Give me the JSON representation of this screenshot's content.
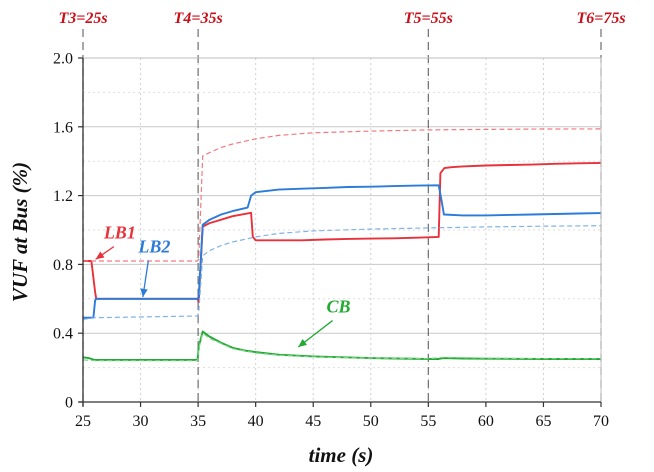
{
  "chart_data": {
    "type": "line",
    "xlabel": "time (s)",
    "ylabel": "VUF at Bus (%)",
    "xlim": [
      25,
      70
    ],
    "ylim": [
      0,
      2.0
    ],
    "x_ticks": [
      25,
      30,
      35,
      40,
      45,
      50,
      55,
      60,
      65,
      70
    ],
    "x_tick_labels": [
      "25",
      "30",
      "35",
      "40",
      "45",
      "50",
      "55",
      "60",
      "65",
      "70"
    ],
    "y_ticks": [
      0,
      0.4,
      0.8,
      1.2,
      1.6,
      2.0
    ],
    "y_tick_labels": [
      "0",
      "0.4",
      "0.8",
      "1.2",
      "1.6",
      "2.0"
    ],
    "grid": true,
    "event_markers": [
      {
        "label": "T3=25s",
        "x": 25
      },
      {
        "label": "T4=35s",
        "x": 35
      },
      {
        "label": "T5=55s",
        "x": 55
      },
      {
        "label": "T6=75s",
        "x": 70
      }
    ],
    "annotations": [
      {
        "label": "LB1",
        "color": "#e8313a",
        "text_at": [
          28.2,
          0.95
        ],
        "arrow_to": [
          26.1,
          0.83
        ]
      },
      {
        "label": "LB2",
        "color": "#2b7bd8",
        "text_at": [
          31.2,
          0.87
        ],
        "arrow_to": [
          30.2,
          0.61
        ]
      },
      {
        "label": "CB",
        "color": "#22aa33",
        "text_at": [
          47.2,
          0.52
        ],
        "arrow_to": [
          43.7,
          0.32
        ]
      }
    ],
    "series": [
      {
        "color": "#e8313a",
        "style": "solid",
        "x": [
          25,
          25.7,
          25.75,
          26.05,
          26.15,
          34.95,
          35.05,
          35.4,
          36,
          37,
          38,
          39.6,
          39.75,
          40,
          42,
          44,
          46,
          48,
          50,
          52,
          54,
          55.9,
          56.05,
          56.4,
          57,
          58,
          60,
          62,
          64,
          66,
          68,
          70
        ],
        "y": [
          0.82,
          0.82,
          0.81,
          0.64,
          0.6,
          0.6,
          0.58,
          1.02,
          1.04,
          1.06,
          1.08,
          1.1,
          0.96,
          0.94,
          0.94,
          0.94,
          0.945,
          0.948,
          0.95,
          0.952,
          0.955,
          0.96,
          1.33,
          1.36,
          1.365,
          1.37,
          1.375,
          1.378,
          1.38,
          1.385,
          1.388,
          1.39
        ]
      },
      {
        "color": "#f07a80",
        "style": "dashed",
        "x": [
          25,
          34.95,
          35.05,
          35.4,
          36,
          37,
          38,
          40,
          42,
          45,
          50,
          55,
          60,
          65,
          70
        ],
        "y": [
          0.82,
          0.82,
          0.83,
          1.43,
          1.45,
          1.48,
          1.5,
          1.53,
          1.55,
          1.565,
          1.575,
          1.582,
          1.585,
          1.587,
          1.588
        ]
      },
      {
        "color": "#2b7bd8",
        "style": "solid",
        "x": [
          25,
          25.9,
          26.05,
          26.15,
          34.95,
          35.05,
          35.4,
          36,
          37,
          38,
          39.3,
          39.6,
          40,
          42,
          44,
          46,
          48,
          50,
          52,
          54,
          55.9,
          56.15,
          56.35,
          58,
          60,
          62,
          64,
          66,
          68,
          70
        ],
        "y": [
          0.49,
          0.49,
          0.59,
          0.6,
          0.6,
          0.61,
          1.03,
          1.06,
          1.09,
          1.11,
          1.13,
          1.2,
          1.22,
          1.235,
          1.24,
          1.245,
          1.25,
          1.252,
          1.255,
          1.258,
          1.26,
          1.17,
          1.09,
          1.085,
          1.085,
          1.088,
          1.09,
          1.093,
          1.096,
          1.098
        ]
      },
      {
        "color": "#7fb3ea",
        "style": "dashed",
        "x": [
          25,
          26,
          34.95,
          35.05,
          35.4,
          36,
          37,
          38,
          40,
          42,
          45,
          50,
          55,
          60,
          65,
          70
        ],
        "y": [
          0.48,
          0.49,
          0.5,
          0.52,
          0.85,
          0.88,
          0.91,
          0.93,
          0.96,
          0.98,
          0.995,
          1.005,
          1.012,
          1.018,
          1.022,
          1.025
        ]
      },
      {
        "color": "#22aa33",
        "style": "solid",
        "x": [
          25,
          25.5,
          26,
          30,
          34.95,
          35.05,
          35.4,
          36,
          37,
          38,
          39,
          40,
          42,
          45,
          50,
          55,
          55.9,
          56.3,
          58,
          60,
          65,
          70
        ],
        "y": [
          0.26,
          0.255,
          0.245,
          0.245,
          0.245,
          0.32,
          0.41,
          0.38,
          0.345,
          0.315,
          0.3,
          0.29,
          0.275,
          0.265,
          0.255,
          0.25,
          0.25,
          0.255,
          0.253,
          0.252,
          0.25,
          0.25
        ]
      },
      {
        "color": "#7ed488",
        "style": "dashed",
        "x": [
          25,
          26,
          30,
          34.95,
          35.05,
          35.4,
          36,
          37,
          38,
          40,
          42,
          45,
          50,
          55,
          56.3,
          60,
          65,
          70
        ],
        "y": [
          0.245,
          0.24,
          0.24,
          0.24,
          0.31,
          0.4,
          0.37,
          0.34,
          0.31,
          0.285,
          0.272,
          0.262,
          0.255,
          0.252,
          0.26,
          0.255,
          0.252,
          0.252
        ]
      }
    ]
  }
}
